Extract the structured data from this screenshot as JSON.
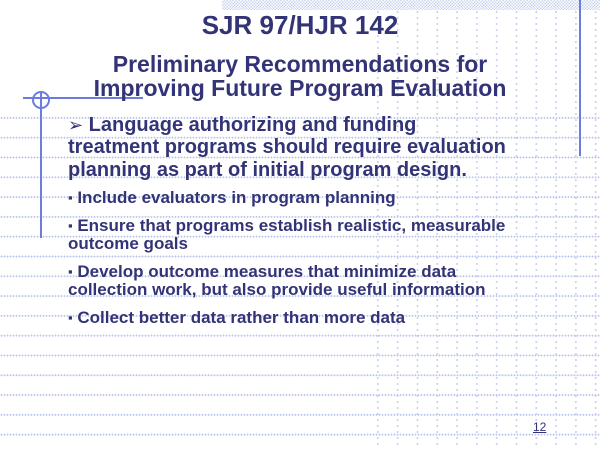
{
  "slide": {
    "title": "SJR 97/HJR 142",
    "subtitle": "Preliminary Recommendations for\nImproving Future Program Evaluation",
    "bullets": [
      {
        "marker": "➢",
        "text": " Language authorizing and funding\ntreatment programs should require evaluation\nplanning as part of initial program design."
      },
      {
        "marker": "▪",
        "text": " Include evaluators in program planning"
      },
      {
        "marker": "▪",
        "text": " Ensure that programs establish realistic, measurable\noutcome goals"
      },
      {
        "marker": "▪",
        "text": " Develop outcome measures that minimize data\ncollection work, but also provide useful information"
      },
      {
        "marker": "▪",
        "text": " Collect better data rather than more data"
      }
    ],
    "page_number": "12",
    "colors": {
      "text": "#333377",
      "accent_line": "#6b7ce0",
      "grid_dots": "#bcc8ec",
      "hatch": "#ccd6ee"
    }
  }
}
